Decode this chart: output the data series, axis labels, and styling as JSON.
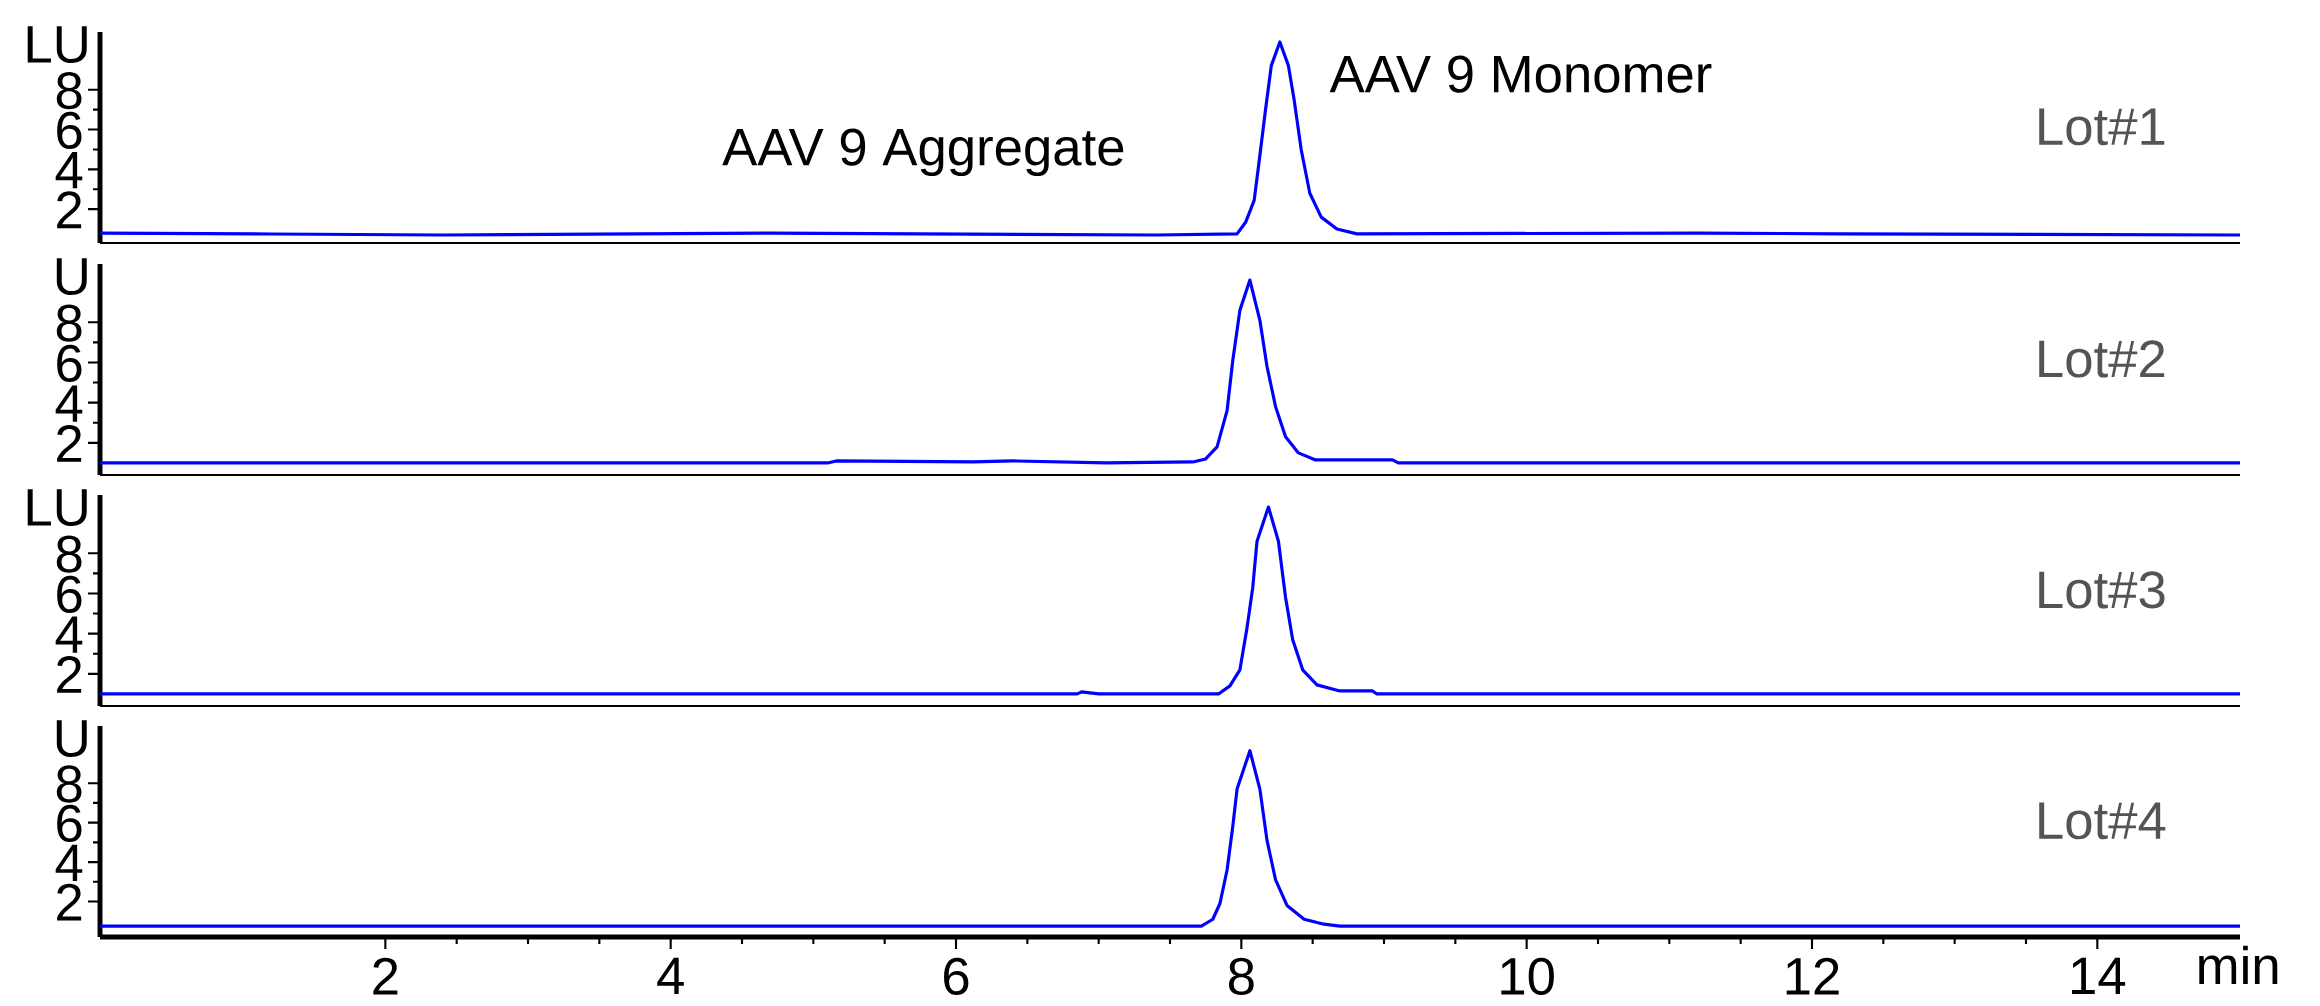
{
  "chart_data": [
    {
      "type": "line",
      "title": "Lot#1",
      "ylabel": "LU",
      "xlim": [
        0,
        15
      ],
      "ylim": [
        0.3,
        10.9
      ],
      "yticks": [
        2,
        4,
        6,
        8
      ],
      "tick_labels": "y",
      "x": [
        0,
        1.2,
        2.4,
        4.7,
        7.4,
        7.97,
        8.03,
        8.09,
        8.12,
        8.17,
        8.21,
        8.27,
        8.33,
        8.37,
        8.42,
        8.48,
        8.56,
        8.67,
        8.81,
        11.2,
        12.2,
        15
      ],
      "series": [
        {
          "color": "#0000ff",
          "values": [
            0.8,
            0.75,
            0.7,
            0.8,
            0.7,
            0.76,
            1.34,
            2.44,
            4.13,
            7.02,
            9.21,
            10.4,
            9.21,
            7.5,
            4.97,
            2.8,
            1.6,
            1.0,
            0.76,
            0.8,
            0.76,
            0.7
          ]
        }
      ],
      "annotations": [
        "AAV 9 Aggregate",
        "AAV 9 Monomer"
      ]
    },
    {
      "type": "line",
      "title": "Lot#2",
      "ylabel": "U",
      "xlim": [
        0,
        15
      ],
      "ylim": [
        0.4,
        10.9
      ],
      "yticks": [
        2,
        4,
        6,
        8
      ],
      "tick_labels": "y",
      "x": [
        0,
        5.1,
        5.16,
        6.12,
        6.4,
        7.05,
        7.66,
        7.75,
        7.83,
        7.9,
        7.94,
        7.99,
        8.06,
        8.13,
        8.18,
        8.24,
        8.31,
        8.4,
        8.52,
        9.06,
        9.1,
        15
      ],
      "series": [
        {
          "color": "#0000ff",
          "values": [
            1.0,
            1.0,
            1.1,
            1.05,
            1.1,
            1.0,
            1.05,
            1.2,
            1.8,
            3.6,
            6.1,
            8.6,
            10.1,
            8.1,
            5.8,
            3.8,
            2.3,
            1.5,
            1.15,
            1.15,
            1.0,
            1.0
          ]
        }
      ]
    },
    {
      "type": "line",
      "title": "Lot#3",
      "ylabel": "LU",
      "xlim": [
        0,
        15
      ],
      "ylim": [
        0.4,
        10.9
      ],
      "yticks": [
        2,
        4,
        6,
        8
      ],
      "tick_labels": "y",
      "x": [
        0,
        6.85,
        6.88,
        7.0,
        7.84,
        7.92,
        7.99,
        8.04,
        8.08,
        8.11,
        8.19,
        8.26,
        8.31,
        8.36,
        8.43,
        8.53,
        8.69,
        8.92,
        8.95,
        15
      ],
      "series": [
        {
          "color": "#0000ff",
          "values": [
            1.0,
            1.0,
            1.1,
            1.0,
            1.0,
            1.4,
            2.2,
            4.3,
            6.3,
            8.6,
            10.3,
            8.6,
            5.8,
            3.7,
            2.2,
            1.45,
            1.15,
            1.15,
            1.0,
            1.0
          ]
        }
      ]
    },
    {
      "type": "line",
      "title": "Lot#4",
      "ylabel": "U",
      "xlabel": "min",
      "xlim": [
        0,
        15
      ],
      "ylim": [
        0.2,
        10.9
      ],
      "xticks": [
        2,
        4,
        6,
        8,
        10,
        12,
        14
      ],
      "yticks": [
        2,
        4,
        6,
        8
      ],
      "x": [
        0,
        7.72,
        7.8,
        7.85,
        7.9,
        7.94,
        7.97,
        8.06,
        8.13,
        8.18,
        8.24,
        8.32,
        8.44,
        8.58,
        8.69,
        15
      ],
      "series": [
        {
          "color": "#0000ff",
          "values": [
            0.75,
            0.75,
            1.1,
            1.9,
            3.6,
            5.8,
            7.7,
            9.65,
            7.7,
            5.1,
            3.1,
            1.8,
            1.1,
            0.85,
            0.75,
            0.75
          ]
        }
      ]
    }
  ]
}
